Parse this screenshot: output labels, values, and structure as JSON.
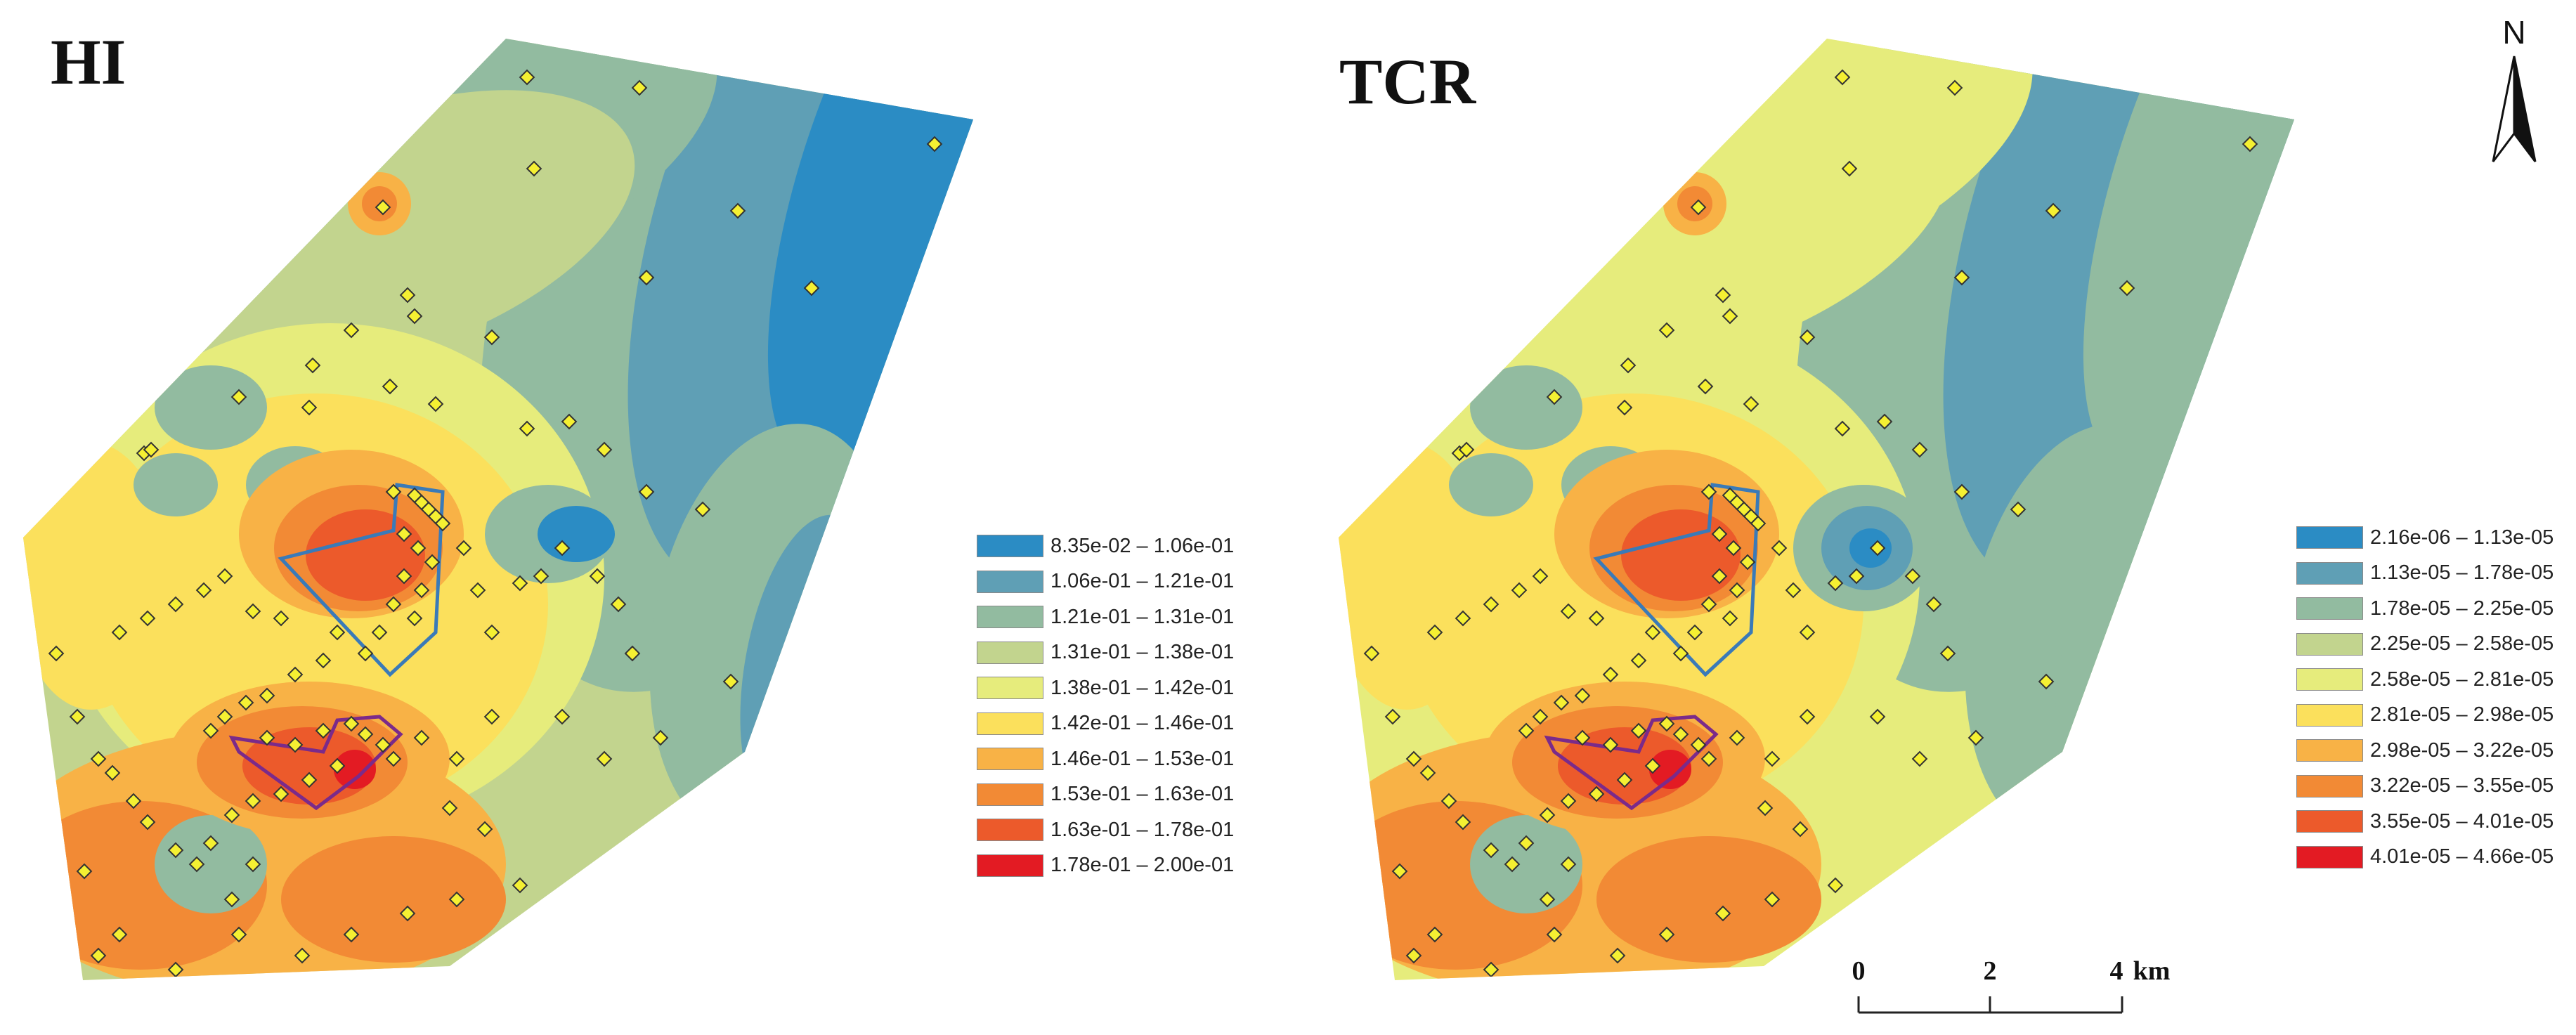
{
  "maps": [
    {
      "id": "hi",
      "title": "HI",
      "legend": [
        {
          "label": "8.35e-02 – 1.06e-01",
          "color": "#2b8cc4"
        },
        {
          "label": "1.06e-01 – 1.21e-01",
          "color": "#5f9fb5"
        },
        {
          "label": "1.21e-01 – 1.31e-01",
          "color": "#92bba0"
        },
        {
          "label": "1.31e-01 – 1.38e-01",
          "color": "#c2d48e"
        },
        {
          "label": "1.38e-01 – 1.42e-01",
          "color": "#e6ec7c"
        },
        {
          "label": "1.42e-01 – 1.46e-01",
          "color": "#fbe05c"
        },
        {
          "label": "1.46e-01 – 1.53e-01",
          "color": "#f8b246"
        },
        {
          "label": "1.53e-01 – 1.63e-01",
          "color": "#f28a35"
        },
        {
          "label": "1.63e-01 – 1.78e-01",
          "color": "#ec5a2b"
        },
        {
          "label": "1.78e-01 – 2.00e-01",
          "color": "#e31b23"
        }
      ]
    },
    {
      "id": "tcr",
      "title": "TCR",
      "legend": [
        {
          "label": "2.16e-06 – 1.13e-05",
          "color": "#2b8cc4"
        },
        {
          "label": "1.13e-05 – 1.78e-05",
          "color": "#5f9fb5"
        },
        {
          "label": "1.78e-05 – 2.25e-05",
          "color": "#92bba0"
        },
        {
          "label": "2.25e-05 – 2.58e-05",
          "color": "#c2d48e"
        },
        {
          "label": "2.58e-05 – 2.81e-05",
          "color": "#e6ec7c"
        },
        {
          "label": "2.81e-05 – 2.98e-05",
          "color": "#fbe05c"
        },
        {
          "label": "2.98e-05 – 3.22e-05",
          "color": "#f8b246"
        },
        {
          "label": "3.22e-05 – 3.55e-05",
          "color": "#f28a35"
        },
        {
          "label": "3.55e-05 – 4.01e-05",
          "color": "#ec5a2b"
        },
        {
          "label": "4.01e-05 – 4.66e-05",
          "color": "#e31b23"
        }
      ]
    }
  ],
  "scale_bar": {
    "ticks": [
      "0",
      "2",
      "4"
    ],
    "unit": "km"
  },
  "north_arrow": {
    "label": "N",
    "icon": "north-arrow-icon"
  },
  "sample_point_color": "#f5f032",
  "zone_outline_colors": {
    "upper": "#3a7ab8",
    "lower": "#7b2a8a"
  }
}
